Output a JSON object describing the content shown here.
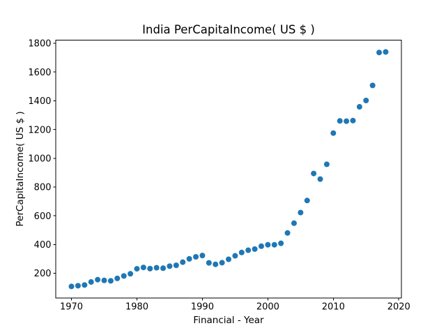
{
  "chart_data": {
    "type": "scatter",
    "title": "India PerCapitaIncome( US $ )",
    "xlabel": "Financial - Year",
    "ylabel": "PerCapitaIncome( US $ )",
    "x": [
      1970,
      1971,
      1972,
      1973,
      1974,
      1975,
      1976,
      1977,
      1978,
      1979,
      1980,
      1981,
      1982,
      1983,
      1984,
      1985,
      1986,
      1987,
      1988,
      1989,
      1990,
      1991,
      1992,
      1993,
      1994,
      1995,
      1996,
      1997,
      1998,
      1999,
      2000,
      2001,
      2002,
      2003,
      2004,
      2005,
      2006,
      2007,
      2008,
      2009,
      2010,
      2011,
      2012,
      2013,
      2014,
      2015,
      2016,
      2017,
      2018
    ],
    "y": [
      108,
      113,
      118,
      139,
      155,
      150,
      147,
      164,
      181,
      196,
      231,
      240,
      232,
      238,
      235,
      249,
      255,
      277,
      300,
      314,
      323,
      272,
      262,
      273,
      297,
      321,
      344,
      360,
      368,
      388,
      398,
      398,
      408,
      480,
      548,
      622,
      706,
      894,
      855,
      958,
      1175,
      1260,
      1258,
      1262,
      1358,
      1402,
      1507,
      1736,
      1740
    ],
    "xlim": [
      1967.6,
      2020.4
    ],
    "ylim": [
      26.4,
      1821.6
    ],
    "xticks": [
      1970,
      1980,
      1990,
      2000,
      2010,
      2020
    ],
    "yticks": [
      200,
      400,
      600,
      800,
      1000,
      1200,
      1400,
      1600,
      1800
    ],
    "grid": false,
    "legend": "none",
    "marker_color": "#1f77b4",
    "axis_color": "#000000",
    "background_color": "#ffffff"
  }
}
